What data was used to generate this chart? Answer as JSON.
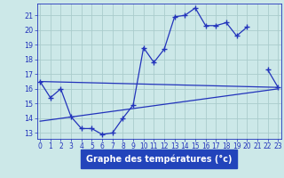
{
  "xlabel": "Graphe des températures (°c)",
  "hours": [
    0,
    1,
    2,
    3,
    4,
    5,
    6,
    7,
    8,
    9,
    10,
    11,
    12,
    13,
    14,
    15,
    16,
    17,
    18,
    19,
    20,
    21,
    22,
    23
  ],
  "temp_main": [
    16.5,
    15.4,
    16.0,
    14.1,
    13.3,
    13.3,
    12.9,
    13.0,
    14.0,
    14.9,
    18.8,
    17.8,
    18.7,
    20.9,
    21.0,
    21.5,
    20.3,
    20.3,
    20.5,
    19.6,
    20.2,
    null,
    17.3,
    16.1
  ],
  "trend1_x": [
    0,
    23
  ],
  "trend1_y": [
    16.5,
    16.1
  ],
  "trend2_x": [
    0,
    23
  ],
  "trend2_y": [
    13.8,
    16.0
  ],
  "line_color": "#2233bb",
  "bg_color": "#cce8e8",
  "grid_color": "#aacccc",
  "label_bg_color": "#2244bb",
  "label_text_color": "#ffffff",
  "ylim": [
    12.6,
    21.8
  ],
  "xlim": [
    -0.3,
    23.3
  ],
  "yticks": [
    13,
    14,
    15,
    16,
    17,
    18,
    19,
    20,
    21
  ],
  "xticks": [
    0,
    1,
    2,
    3,
    4,
    5,
    6,
    7,
    8,
    9,
    10,
    11,
    12,
    13,
    14,
    15,
    16,
    17,
    18,
    19,
    20,
    21,
    22,
    23
  ],
  "tick_fontsize": 5.5,
  "label_fontsize": 7.0
}
